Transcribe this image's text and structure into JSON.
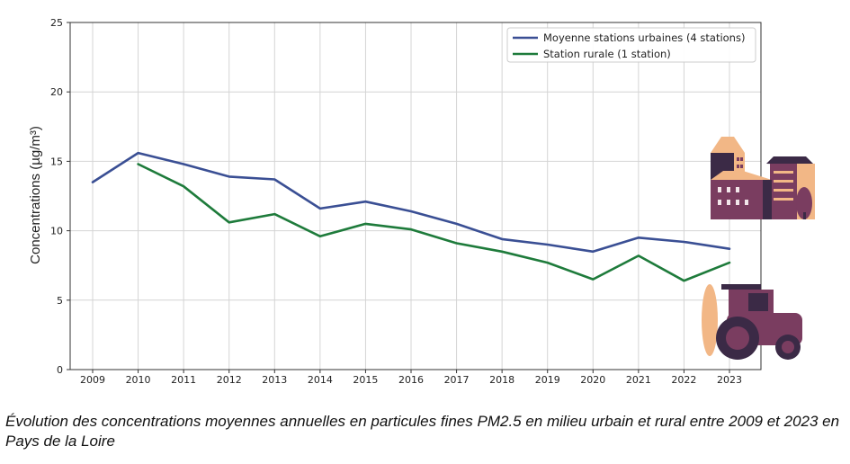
{
  "caption": "Évolution des concentrations moyennes annuelles en particules fines PM2.5 en milieu urbain et rural entre 2009 et 2023 en Pays de la Loire",
  "chart_data": {
    "type": "line",
    "title": "",
    "xlabel": "",
    "ylabel": "Concentrations (µg/m³)",
    "ylim": [
      0,
      25
    ],
    "yticks": [
      0,
      5,
      10,
      15,
      20,
      25
    ],
    "x": [
      "2009",
      "2010",
      "2011",
      "2012",
      "2013",
      "2014",
      "2015",
      "2016",
      "2017",
      "2018",
      "2019",
      "2020",
      "2021",
      "2022",
      "2023"
    ],
    "grid": true,
    "legend_position": "top-right",
    "series": [
      {
        "name": "Moyenne stations urbaines (4 stations)",
        "color": "#3a4f94",
        "values": [
          13.5,
          15.6,
          14.8,
          13.9,
          13.7,
          11.6,
          12.1,
          11.4,
          10.5,
          9.4,
          9.0,
          8.5,
          9.5,
          9.2,
          8.7
        ]
      },
      {
        "name": "Station rurale (1 station)",
        "color": "#1e7b3b",
        "values": [
          null,
          14.8,
          13.2,
          10.6,
          11.2,
          9.6,
          10.5,
          10.1,
          9.1,
          8.5,
          7.7,
          6.5,
          8.2,
          6.4,
          7.7
        ]
      }
    ]
  },
  "decorations": {
    "urban_icon": "city-buildings-icon",
    "rural_icon": "tractor-icon",
    "colors": {
      "plum": "#7a3d60",
      "dark": "#3b2a46",
      "peach": "#f2b786"
    }
  }
}
